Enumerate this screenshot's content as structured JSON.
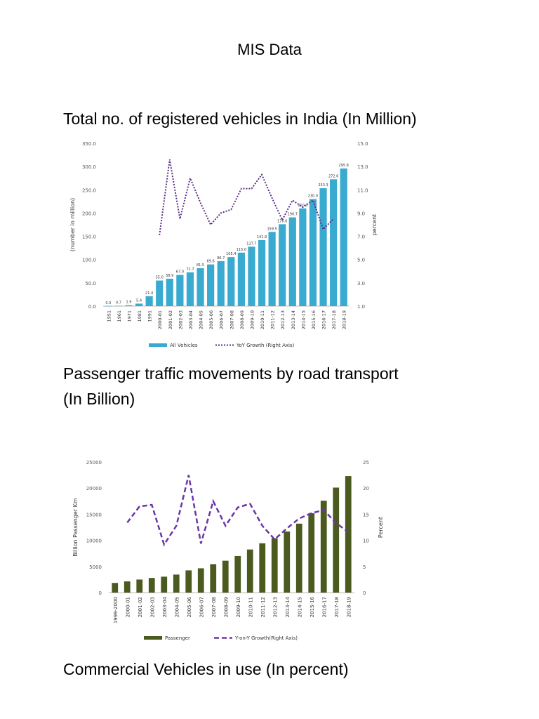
{
  "document": {
    "title": "MIS Data",
    "section1_heading": "Total no. of registered vehicles in India (In Million)",
    "section2_heading_line1": "Passenger traffic movements by road transport",
    "section2_heading_line2": "(In Billion)",
    "section3_heading": "Commercial Vehicles in use (In percent)"
  },
  "colors": {
    "vehicles_bar": "#3aabd0",
    "vehicles_line": "#5b2d8a",
    "passenger_bar": "#4b5a1e",
    "passenger_line": "#6a35a8",
    "axis_text": "#555555",
    "grid": "#dddddd"
  },
  "chart_data": [
    {
      "type": "bar",
      "title": "Total no. of registered vehicles in India (In Million)",
      "categories": [
        "1951",
        "1961",
        "1971",
        "1981",
        "1991",
        "2000-01",
        "2001-02",
        "2002-03",
        "2003-04",
        "2004-05",
        "2005-06",
        "2006-07",
        "2007-08",
        "2008-09",
        "2009-10",
        "2010-11",
        "2011-12",
        "2012-13",
        "2013-14",
        "2014-15",
        "2015-16",
        "2016-17",
        "2017-18",
        "2018-19"
      ],
      "series": [
        {
          "name": "All Vehicles",
          "axis": "left",
          "type": "bar",
          "values": [
            0.3,
            0.7,
            1.9,
            5.4,
            21.4,
            55.0,
            58.9,
            67.0,
            72.7,
            81.5,
            89.6,
            96.7,
            105.4,
            115.0,
            127.7,
            141.9,
            159.5,
            176.0,
            190.7,
            210.0,
            230.0,
            253.3,
            272.6,
            295.8
          ]
        },
        {
          "name": "YoY Growth (Right Axis)",
          "axis": "right",
          "type": "line",
          "style": "dotted",
          "values": [
            null,
            null,
            null,
            null,
            null,
            7.1,
            13.6,
            8.5,
            12.0,
            9.9,
            8.0,
            9.0,
            9.3,
            11.1,
            11.1,
            12.3,
            10.3,
            8.4,
            10.1,
            9.5,
            10.1,
            7.6,
            8.5,
            null
          ]
        }
      ],
      "data_labels": [
        "0.3",
        "0.7",
        "1.9",
        "5.4",
        "21.4",
        "55.0",
        "58.9",
        "67.0",
        "72.7",
        "81.5",
        "89.6",
        "96.7",
        "105.4",
        "115.0",
        "127.7",
        "141.9",
        "159.5",
        "176.0",
        "190.7",
        "210.0",
        "230.0",
        "253.3",
        "272.6",
        "295.8"
      ],
      "ylabel": "(number in million)",
      "y2label": "percent",
      "ylim": [
        0,
        350
      ],
      "y_ticks": [
        "0.0",
        "50.0",
        "100.0",
        "150.0",
        "200.0",
        "250.0",
        "300.0",
        "350.0"
      ],
      "y2lim": [
        1,
        15
      ],
      "y2_ticks": [
        "1.0",
        "3.0",
        "5.0",
        "7.0",
        "9.0",
        "11.0",
        "13.0",
        "15.0"
      ],
      "legend": [
        "All Vehicles",
        "YoY Growth (Right Axis)"
      ],
      "legend_position": "bottom",
      "grid": false
    },
    {
      "type": "bar",
      "title": "Passenger traffic movements by road transport (In Billion)",
      "categories": [
        "1999-2000",
        "2000-01",
        "2001-02",
        "2002-03",
        "2003-04",
        "2004-05",
        "2005-06",
        "2006-07",
        "2007-08",
        "2008-09",
        "2009-10",
        "2010-11",
        "2011-12",
        "2012-13",
        "2013-14",
        "2014-15",
        "2015-16",
        "2016-17",
        "2017-18",
        "2018-19"
      ],
      "series": [
        {
          "name": "Passenger",
          "axis": "left",
          "type": "bar",
          "values": [
            1850,
            2150,
            2500,
            2800,
            3050,
            3450,
            4250,
            4650,
            5450,
            6100,
            7000,
            8250,
            9450,
            10400,
            11700,
            13200,
            15200,
            17600,
            20100,
            22300
          ]
        },
        {
          "name": "Y-on-Y Growth(Right Axis)",
          "axis": "right",
          "type": "line",
          "style": "dashed",
          "values": [
            null,
            13.4,
            16.5,
            16.8,
            9.2,
            12.8,
            22.5,
            9.4,
            17.5,
            12.8,
            16.3,
            17.0,
            12.8,
            10.2,
            12.3,
            14.2,
            15.2,
            15.8,
            13.3,
            11.6
          ]
        }
      ],
      "ylabel": "Billion Passenger Km",
      "y2label": "Percent",
      "ylim": [
        0,
        25000
      ],
      "y_ticks": [
        "0",
        "5000",
        "10000",
        "15000",
        "20000",
        "25000"
      ],
      "y2lim": [
        0,
        25
      ],
      "y2_ticks": [
        "0",
        "5",
        "10",
        "15",
        "20",
        "25"
      ],
      "legend": [
        "Passenger",
        "Y-on-Y Growth(Right Axis)"
      ],
      "legend_position": "bottom",
      "grid": false
    }
  ]
}
